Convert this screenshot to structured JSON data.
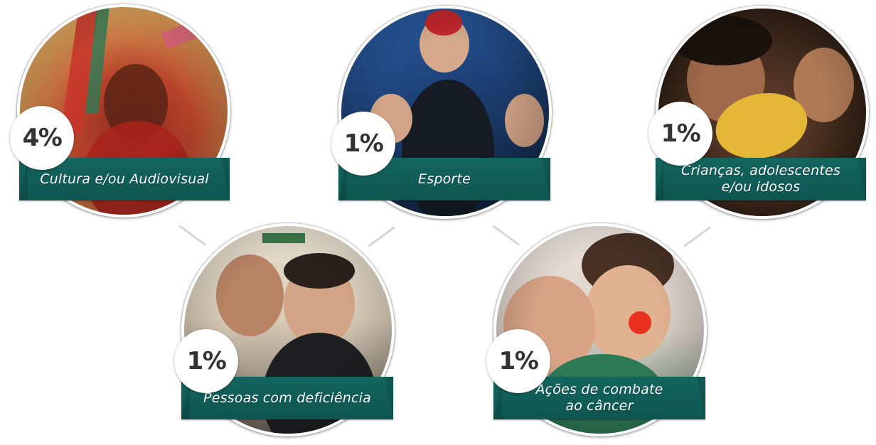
{
  "causes": [
    {
      "id": "cultura",
      "percent": "4%",
      "label": "Cultura e/ou Audiovisual",
      "photo_colors": [
        "#b3261e",
        "#e9b04a",
        "#f2e2b2"
      ]
    },
    {
      "id": "esporte",
      "percent": "1%",
      "label": "Esporte",
      "photo_colors": [
        "#1f4c89",
        "#2b2b2b",
        "#d9c7b1"
      ]
    },
    {
      "id": "criancas",
      "percent": "1%",
      "label": "Crianças, adolescentes\ne/ou idosos",
      "photo_colors": [
        "#3f2a1c",
        "#e6b93a",
        "#8a5a3a"
      ]
    },
    {
      "id": "deficiencia",
      "percent": "1%",
      "label": "Pessoas com deficiência",
      "photo_colors": [
        "#2c2c2c",
        "#c79a7a",
        "#e9e2d5"
      ]
    },
    {
      "id": "cancer",
      "percent": "1%",
      "label": "Ações de combate\nao câncer",
      "photo_colors": [
        "#e8e0d8",
        "#c98d6e",
        "#2f6b4f"
      ]
    }
  ]
}
